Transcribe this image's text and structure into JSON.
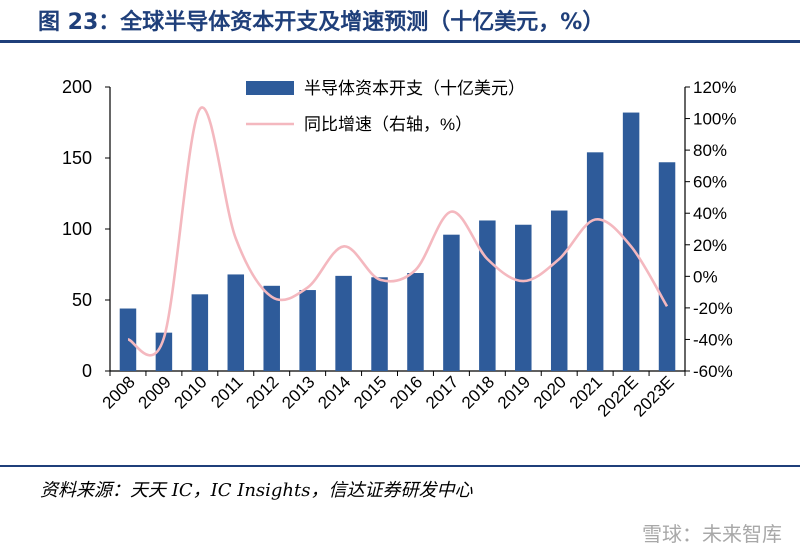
{
  "figure": {
    "title": "图 23：全球半导体资本开支及增速预测（十亿美元，%）",
    "source": "资料来源：天天 IC，IC Insights，信达证券研发中心",
    "watermark": "雪球：未来智库"
  },
  "chart_data": {
    "type": "bar",
    "categories": [
      "2008",
      "2009",
      "2010",
      "2011",
      "2012",
      "2013",
      "2014",
      "2015",
      "2016",
      "2017",
      "2018",
      "2019",
      "2020",
      "2021",
      "2022E",
      "2023E"
    ],
    "series": [
      {
        "name": "半导体资本开支（十亿美元）",
        "type": "bar",
        "axis": "left",
        "color": "#2e5b9a",
        "values": [
          44,
          27,
          54,
          68,
          60,
          57,
          67,
          66,
          69,
          96,
          106,
          103,
          113,
          154,
          182,
          147
        ]
      },
      {
        "name": "同比增速（右轴，%）",
        "type": "line",
        "axis": "right",
        "color": "#f4b8bf",
        "values": [
          -40,
          -39,
          106,
          24,
          -13,
          -7,
          19,
          -2,
          4,
          41,
          11,
          -3,
          11,
          36,
          19,
          -19
        ]
      }
    ],
    "left_axis": {
      "min": 0,
      "max": 200,
      "ticks": [
        0,
        50,
        100,
        150,
        200
      ]
    },
    "right_axis": {
      "min": -60,
      "max": 120,
      "ticks": [
        -60,
        -40,
        -20,
        0,
        20,
        40,
        60,
        80,
        100,
        120
      ],
      "unit": "%"
    },
    "legend_position": "top-center",
    "grid": false
  }
}
